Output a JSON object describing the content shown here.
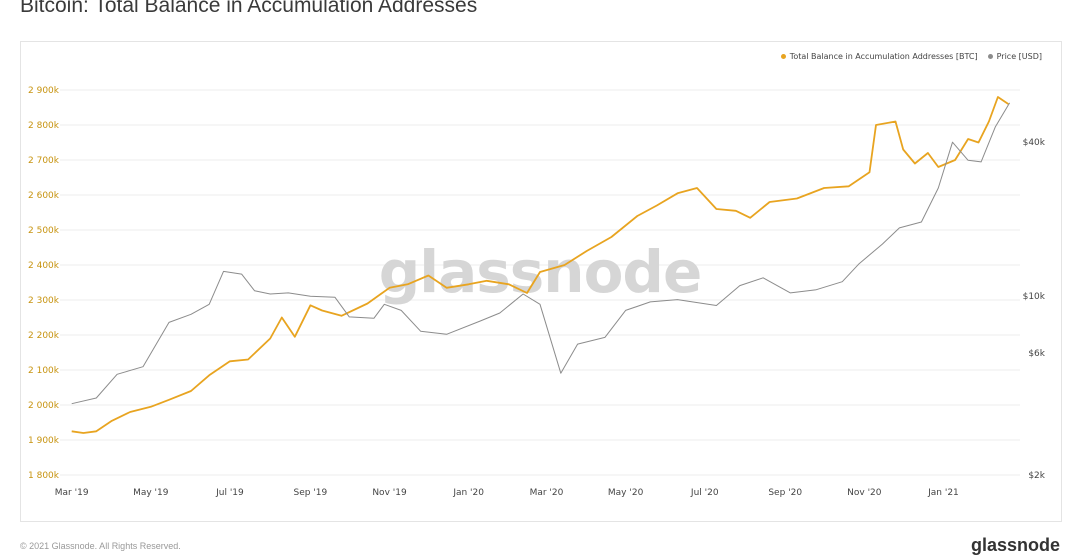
{
  "title": "Bitcoin: Total Balance in Accumulation Addresses",
  "legend": [
    {
      "label": "Total Balance in Accumulation Addresses [BTC]",
      "color": "#e8a420"
    },
    {
      "label": "Price [USD]",
      "color": "#8c8c8c"
    }
  ],
  "watermark": "glassnode",
  "footer": {
    "left": "© 2021 Glassnode. All Rights Reserved.",
    "right": "glassnode"
  },
  "chart_data": {
    "type": "line",
    "x_ticks": [
      "Mar '19",
      "May '19",
      "Jul '19",
      "Sep '19",
      "Nov '19",
      "Jan '20",
      "Mar '20",
      "May '20",
      "Jul '20",
      "Sep '20",
      "Nov '20",
      "Jan '21"
    ],
    "y_ticks": [
      "1 800k",
      "1 900k",
      "2 000k",
      "2 100k",
      "2 200k",
      "2 300k",
      "2 400k",
      "2 500k",
      "2 600k",
      "2 700k",
      "2 800k",
      "2 900k"
    ],
    "y_range": [
      1800000,
      2900000
    ],
    "y2_ticks": [
      "$2k",
      "$6k",
      "$10k",
      "$40k"
    ],
    "y2_scale": "log",
    "y2_range": [
      2000,
      64000
    ],
    "grid": true,
    "legend_position": "top-right",
    "series": [
      {
        "name": "Total Balance in Accumulation Addresses [BTC]",
        "color": "#e8a420",
        "axis": "left",
        "points": [
          [
            "2019-03-01",
            1925000
          ],
          [
            "2019-03-10",
            1920000
          ],
          [
            "2019-03-20",
            1925000
          ],
          [
            "2019-04-01",
            1955000
          ],
          [
            "2019-04-15",
            1980000
          ],
          [
            "2019-05-01",
            1995000
          ],
          [
            "2019-05-15",
            2015000
          ],
          [
            "2019-06-01",
            2040000
          ],
          [
            "2019-06-15",
            2085000
          ],
          [
            "2019-07-01",
            2125000
          ],
          [
            "2019-07-15",
            2130000
          ],
          [
            "2019-08-01",
            2190000
          ],
          [
            "2019-08-10",
            2250000
          ],
          [
            "2019-08-20",
            2195000
          ],
          [
            "2019-09-01",
            2285000
          ],
          [
            "2019-09-10",
            2270000
          ],
          [
            "2019-09-25",
            2255000
          ],
          [
            "2019-10-15",
            2290000
          ],
          [
            "2019-11-01",
            2335000
          ],
          [
            "2019-11-15",
            2345000
          ],
          [
            "2019-12-01",
            2370000
          ],
          [
            "2019-12-15",
            2335000
          ],
          [
            "2020-01-01",
            2345000
          ],
          [
            "2020-01-15",
            2355000
          ],
          [
            "2020-02-01",
            2345000
          ],
          [
            "2020-02-15",
            2320000
          ],
          [
            "2020-02-25",
            2380000
          ],
          [
            "2020-03-15",
            2400000
          ],
          [
            "2020-04-01",
            2440000
          ],
          [
            "2020-04-20",
            2480000
          ],
          [
            "2020-05-10",
            2540000
          ],
          [
            "2020-05-25",
            2570000
          ],
          [
            "2020-06-10",
            2605000
          ],
          [
            "2020-06-25",
            2620000
          ],
          [
            "2020-07-10",
            2560000
          ],
          [
            "2020-07-25",
            2555000
          ],
          [
            "2020-08-05",
            2535000
          ],
          [
            "2020-08-20",
            2580000
          ],
          [
            "2020-09-10",
            2590000
          ],
          [
            "2020-10-01",
            2620000
          ],
          [
            "2020-10-20",
            2625000
          ],
          [
            "2020-11-05",
            2665000
          ],
          [
            "2020-11-10",
            2800000
          ],
          [
            "2020-11-25",
            2810000
          ],
          [
            "2020-12-01",
            2730000
          ],
          [
            "2020-12-10",
            2690000
          ],
          [
            "2020-12-20",
            2720000
          ],
          [
            "2020-12-28",
            2680000
          ],
          [
            "2021-01-10",
            2700000
          ],
          [
            "2021-01-20",
            2760000
          ],
          [
            "2021-01-28",
            2750000
          ],
          [
            "2021-02-05",
            2810000
          ],
          [
            "2021-02-12",
            2880000
          ],
          [
            "2021-02-20",
            2860000
          ]
        ]
      },
      {
        "name": "Price [USD]",
        "color": "#8c8c8c",
        "axis": "right",
        "points": [
          [
            "2019-03-01",
            3800
          ],
          [
            "2019-03-20",
            4000
          ],
          [
            "2019-04-05",
            4950
          ],
          [
            "2019-04-25",
            5300
          ],
          [
            "2019-05-15",
            7900
          ],
          [
            "2019-06-01",
            8500
          ],
          [
            "2019-06-15",
            9300
          ],
          [
            "2019-06-26",
            12500
          ],
          [
            "2019-07-10",
            12200
          ],
          [
            "2019-07-20",
            10500
          ],
          [
            "2019-08-01",
            10200
          ],
          [
            "2019-08-15",
            10300
          ],
          [
            "2019-09-01",
            10000
          ],
          [
            "2019-09-20",
            9900
          ],
          [
            "2019-10-01",
            8300
          ],
          [
            "2019-10-20",
            8200
          ],
          [
            "2019-10-28",
            9300
          ],
          [
            "2019-11-10",
            8800
          ],
          [
            "2019-11-25",
            7300
          ],
          [
            "2019-12-15",
            7100
          ],
          [
            "2020-01-10",
            8000
          ],
          [
            "2020-01-25",
            8600
          ],
          [
            "2020-02-12",
            10200
          ],
          [
            "2020-02-25",
            9300
          ],
          [
            "2020-03-12",
            5000
          ],
          [
            "2020-03-25",
            6500
          ],
          [
            "2020-04-15",
            6900
          ],
          [
            "2020-05-01",
            8800
          ],
          [
            "2020-05-20",
            9500
          ],
          [
            "2020-06-10",
            9700
          ],
          [
            "2020-07-10",
            9200
          ],
          [
            "2020-07-28",
            11000
          ],
          [
            "2020-08-15",
            11800
          ],
          [
            "2020-09-05",
            10300
          ],
          [
            "2020-09-25",
            10600
          ],
          [
            "2020-10-15",
            11400
          ],
          [
            "2020-10-28",
            13400
          ],
          [
            "2020-11-15",
            16000
          ],
          [
            "2020-11-28",
            18500
          ],
          [
            "2020-12-15",
            19500
          ],
          [
            "2020-12-28",
            26500
          ],
          [
            "2021-01-08",
            40000
          ],
          [
            "2021-01-20",
            34000
          ],
          [
            "2021-01-30",
            33500
          ],
          [
            "2021-02-10",
            46000
          ],
          [
            "2021-02-21",
            57000
          ]
        ]
      }
    ]
  }
}
